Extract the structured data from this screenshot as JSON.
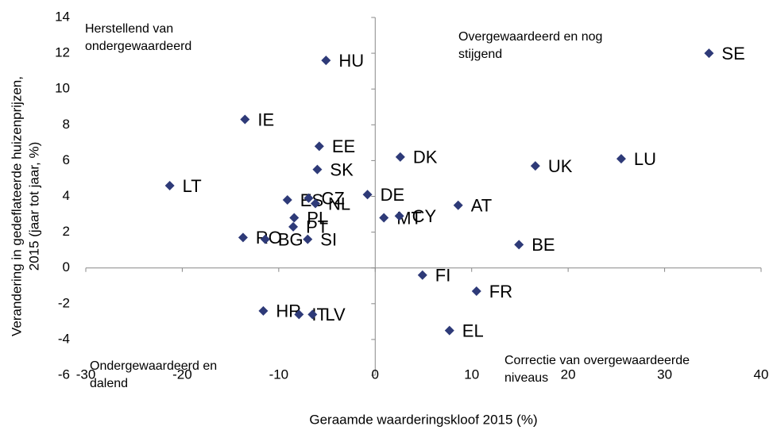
{
  "chart_data": {
    "type": "scatter",
    "xlabel": "Geraamde waarderingskloof  2015 (%)",
    "ylabel": [
      "Verandering in gedeflateerde huizenprijzen,",
      "2015 (jaar tot jaar, %)"
    ],
    "quadrant_labels": [
      [
        "Herstellend van",
        "ondergewaardeerd"
      ],
      [
        "Overgewaardeerd en nog",
        "stijgend"
      ],
      [
        "Ondergewaardeerd en",
        "dalend"
      ],
      [
        "Correctie van overgewaardeerde",
        "niveaus"
      ]
    ],
    "color": "#2e3a78",
    "point_labels": [
      "SE",
      "HU",
      "IE",
      "EE",
      "SK",
      "DK",
      "UK",
      "LU",
      "LT",
      "ES",
      "CZ",
      "NL",
      "DE",
      "AT",
      "MT",
      "CY",
      "PL",
      "PT",
      "RO",
      "BG",
      "SI",
      "BE",
      "FI",
      "FR",
      "HR",
      "IT",
      "LV",
      "EL"
    ],
    "x": [
      34.6,
      -5.1,
      -13.5,
      -5.8,
      -6.0,
      2.6,
      16.6,
      25.5,
      -21.3,
      -9.1,
      -6.9,
      -6.2,
      -0.8,
      8.6,
      0.9,
      2.5,
      -8.4,
      -8.5,
      -13.7,
      -11.4,
      -7.0,
      14.9,
      4.9,
      10.5,
      -11.6,
      -7.9,
      -6.5,
      7.7
    ],
    "values": [
      12.0,
      11.6,
      8.3,
      6.8,
      5.5,
      6.2,
      5.7,
      6.1,
      4.6,
      3.8,
      3.9,
      3.6,
      4.1,
      3.5,
      2.8,
      2.9,
      2.8,
      2.3,
      1.7,
      1.6,
      1.6,
      1.3,
      -0.4,
      -1.3,
      -2.4,
      -2.6,
      -2.6,
      -3.5
    ],
    "xlim": [
      -30,
      40
    ],
    "ylim": [
      -6,
      14
    ],
    "xticks": [
      -30,
      -20,
      -10,
      0,
      10,
      20,
      30,
      40
    ],
    "yticks": [
      -6,
      -4,
      -2,
      0,
      2,
      4,
      6,
      8,
      10,
      12,
      14
    ]
  }
}
